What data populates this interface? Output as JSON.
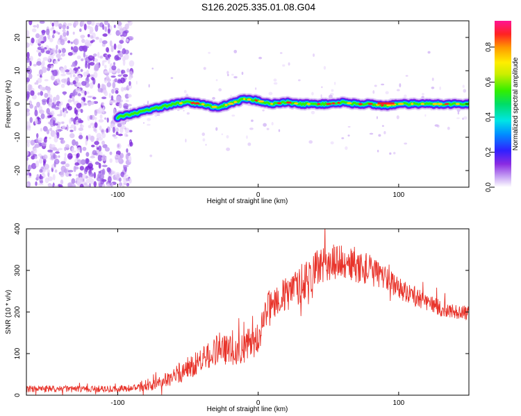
{
  "title": "S126.2025.335.01.08.G04",
  "chart_data": [
    {
      "type": "heatmap",
      "xlabel": "Height of straight line (km)",
      "ylabel": "Frequency (Hz)",
      "xlim": [
        -165,
        150
      ],
      "ylim": [
        -25,
        25
      ],
      "xticks": [
        -100,
        0,
        100
      ],
      "yticks": [
        -20,
        -10,
        0,
        10,
        20
      ],
      "colorbar": {
        "label": "Normalized spectral amplitude",
        "range": [
          0,
          0.95
        ],
        "ticks": [
          0.0,
          0.2,
          0.4,
          0.6,
          0.8
        ],
        "tick_labels": [
          "0.0",
          "0.2",
          "0.4",
          "0.6",
          "0.8"
        ]
      },
      "ridge": {
        "x": [
          -100,
          -90,
          -80,
          -70,
          -60,
          -50,
          -40,
          -30,
          -20,
          -10,
          0,
          10,
          20,
          30,
          40,
          50,
          60,
          70,
          80,
          90,
          100,
          110,
          120,
          130,
          140,
          150
        ],
        "y": [
          -4,
          -3,
          -2,
          -1,
          0,
          0.5,
          0,
          -1,
          0,
          1.5,
          1,
          0,
          0.5,
          0,
          0,
          0,
          0.5,
          0,
          0,
          -0.5,
          0,
          0,
          0,
          0,
          0,
          0
        ]
      },
      "noise_region": {
        "x": [
          -165,
          -90
        ],
        "y": [
          -25,
          25
        ]
      }
    },
    {
      "type": "line",
      "xlabel": "Height of straight line (km)",
      "ylabel": "SNR (10 * v/v)",
      "xlim": [
        -165,
        150
      ],
      "ylim": [
        0,
        400
      ],
      "xticks": [
        -100,
        0,
        100
      ],
      "yticks": [
        0,
        100,
        200,
        300,
        400
      ],
      "series": [
        {
          "color": "#e8332a",
          "envelope": {
            "x": [
              -165,
              -130,
              -100,
              -80,
              -70,
              -60,
              -50,
              -40,
              -30,
              -20,
              -10,
              0,
              5,
              10,
              20,
              30,
              40,
              50,
              60,
              70,
              80,
              90,
              100,
              110,
              120,
              130,
              140,
              150
            ],
            "y": [
              15,
              15,
              15,
              18,
              30,
              45,
              65,
              85,
              105,
              110,
              115,
              135,
              200,
              225,
              240,
              265,
              300,
              320,
              320,
              310,
              300,
              285,
              260,
              240,
              225,
              210,
              200,
              200
            ],
            "amp": [
              8,
              8,
              8,
              10,
              15,
              22,
              28,
              32,
              35,
              38,
              40,
              40,
              35,
              40,
              45,
              45,
              45,
              45,
              42,
              40,
              38,
              30,
              28,
              25,
              22,
              20,
              18,
              18
            ]
          }
        }
      ]
    }
  ]
}
